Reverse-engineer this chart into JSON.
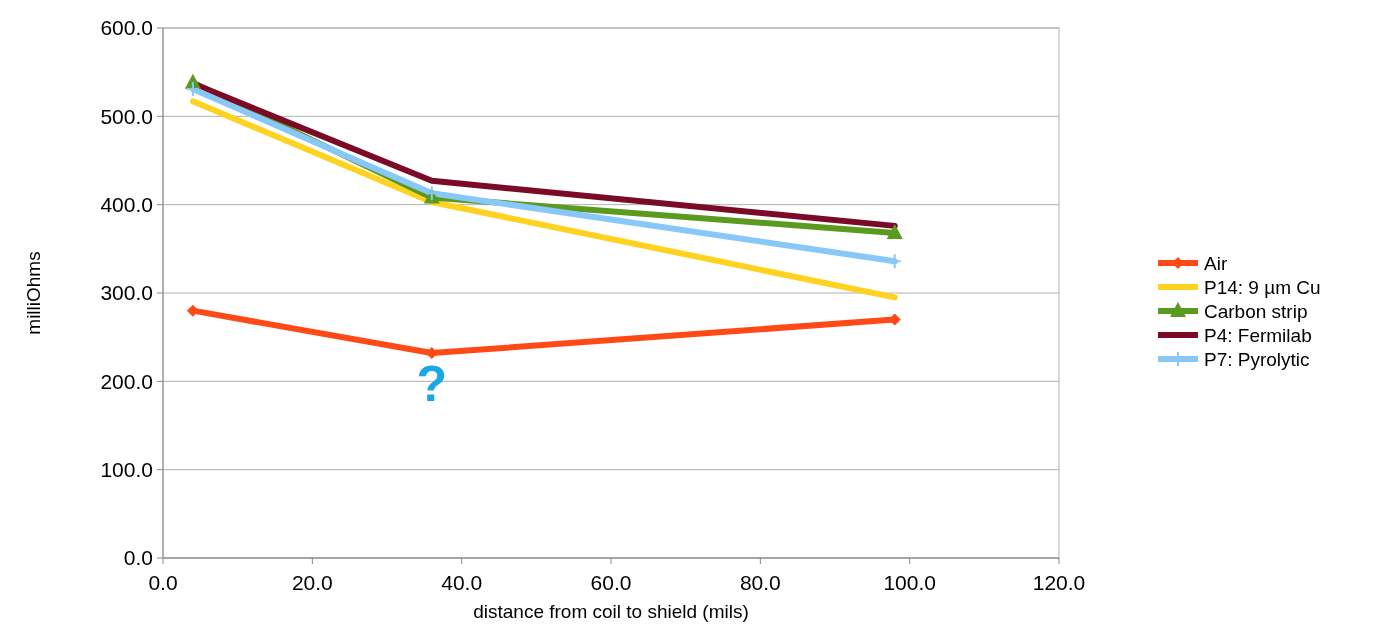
{
  "chart_data": {
    "type": "line",
    "xlabel": "distance from coil to shield (mils)",
    "ylabel": "milliOhms",
    "x": [
      4,
      36,
      98
    ],
    "series": [
      {
        "name": "Air",
        "color": "#ff4a17",
        "marker": "diamond",
        "values": [
          280,
          232,
          270
        ]
      },
      {
        "name": "P14: 9 µm Cu",
        "color": "#ffd21f",
        "marker": "none",
        "values": [
          517,
          403,
          295
        ]
      },
      {
        "name": "Carbon strip",
        "color": "#5a9a1e",
        "marker": "triangle",
        "values": [
          538,
          408,
          368
        ]
      },
      {
        "name": "P4: Fermilab",
        "color": "#7a0a26",
        "marker": "none",
        "values": [
          537,
          427,
          376
        ]
      },
      {
        "name": "P7: Pyrolytic",
        "color": "#88c8f8",
        "marker": "cross",
        "values": [
          531,
          413,
          336
        ]
      }
    ],
    "xlim": [
      0,
      120
    ],
    "xticks": [
      {
        "value": 0,
        "label": "0.0"
      },
      {
        "value": 20,
        "label": "20.0"
      },
      {
        "value": 40,
        "label": "40.0"
      },
      {
        "value": 60,
        "label": "60.0"
      },
      {
        "value": 80,
        "label": "80.0"
      },
      {
        "value": 100,
        "label": "100.0"
      },
      {
        "value": 120,
        "label": "120.0"
      }
    ],
    "ylim": [
      0,
      600
    ],
    "yticks": [
      {
        "value": 0,
        "label": "0.0"
      },
      {
        "value": 100,
        "label": "100.0"
      },
      {
        "value": 200,
        "label": "200.0"
      },
      {
        "value": 300,
        "label": "300.0"
      },
      {
        "value": 400,
        "label": "400.0"
      },
      {
        "value": 500,
        "label": "500.0"
      },
      {
        "value": 600,
        "label": "600.0"
      }
    ],
    "grid": "y",
    "legend": "right",
    "line_style": "solid",
    "annotations": [
      {
        "text": "?",
        "x": 36,
        "y": 232
      }
    ]
  }
}
